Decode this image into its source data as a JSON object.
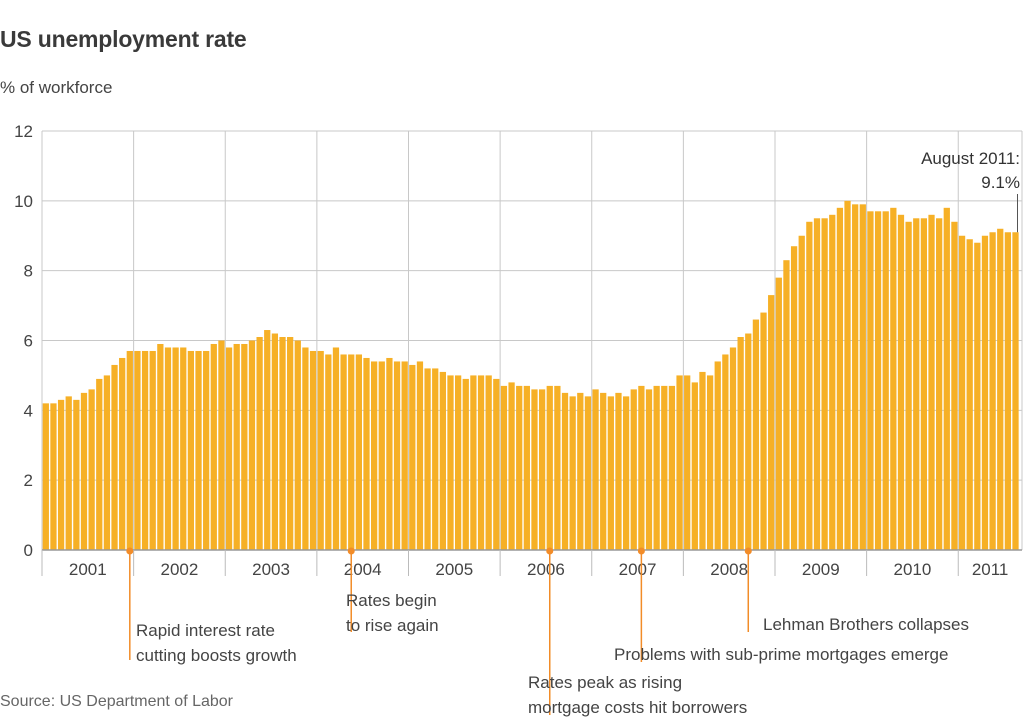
{
  "title": "US unemployment rate",
  "subtitle": "% of workforce",
  "source": "Source: US Department of Labor",
  "colors": {
    "bar": "#f6b026",
    "bar_edge": "#e89e16",
    "annotation": "#f28c28",
    "grid": "#c8c8c8",
    "text": "#444444"
  },
  "chart_data": {
    "type": "bar",
    "title": "US unemployment rate",
    "ylabel": "% of workforce",
    "xlabel": "",
    "ylim": [
      0,
      12
    ],
    "yticks": [
      0,
      2,
      4,
      6,
      8,
      10,
      12
    ],
    "grid": true,
    "legend": "none",
    "years": [
      "2001",
      "2002",
      "2003",
      "2004",
      "2005",
      "2006",
      "2007",
      "2008",
      "2009",
      "2010",
      "2011"
    ],
    "start_month": "2001-01",
    "end_month": "2011-08",
    "values": [
      4.2,
      4.2,
      4.3,
      4.4,
      4.3,
      4.5,
      4.6,
      4.9,
      5.0,
      5.3,
      5.5,
      5.7,
      5.7,
      5.7,
      5.7,
      5.9,
      5.8,
      5.8,
      5.8,
      5.7,
      5.7,
      5.7,
      5.9,
      6.0,
      5.8,
      5.9,
      5.9,
      6.0,
      6.1,
      6.3,
      6.2,
      6.1,
      6.1,
      6.0,
      5.8,
      5.7,
      5.7,
      5.6,
      5.8,
      5.6,
      5.6,
      5.6,
      5.5,
      5.4,
      5.4,
      5.5,
      5.4,
      5.4,
      5.3,
      5.4,
      5.2,
      5.2,
      5.1,
      5.0,
      5.0,
      4.9,
      5.0,
      5.0,
      5.0,
      4.9,
      4.7,
      4.8,
      4.7,
      4.7,
      4.6,
      4.6,
      4.7,
      4.7,
      4.5,
      4.4,
      4.5,
      4.4,
      4.6,
      4.5,
      4.4,
      4.5,
      4.4,
      4.6,
      4.7,
      4.6,
      4.7,
      4.7,
      4.7,
      5.0,
      5.0,
      4.8,
      5.1,
      5.0,
      5.4,
      5.6,
      5.8,
      6.1,
      6.2,
      6.6,
      6.8,
      7.3,
      7.8,
      8.3,
      8.7,
      9.0,
      9.4,
      9.5,
      9.5,
      9.6,
      9.8,
      10.0,
      9.9,
      9.9,
      9.7,
      9.7,
      9.7,
      9.8,
      9.6,
      9.4,
      9.5,
      9.5,
      9.6,
      9.5,
      9.8,
      9.4,
      9.0,
      8.9,
      8.8,
      9.0,
      9.1,
      9.2,
      9.1,
      9.1
    ],
    "annotations": [
      {
        "month_index": 11,
        "lines": [
          "Rapid interest rate",
          "cutting boosts growth"
        ]
      },
      {
        "month_index": 40,
        "lines": [
          "Rates begin",
          "to rise again"
        ]
      },
      {
        "month_index": 66,
        "lines": [
          "Rates peak as rising",
          "mortgage costs hit borrowers"
        ]
      },
      {
        "month_index": 78,
        "lines": [
          "Problems with sub-prime mortgages emerge"
        ]
      },
      {
        "month_index": 92,
        "lines": [
          "Lehman Brothers collapses"
        ]
      }
    ],
    "callout": {
      "month_index": 127,
      "lines": [
        "August 2011:",
        "9.1%"
      ]
    }
  }
}
